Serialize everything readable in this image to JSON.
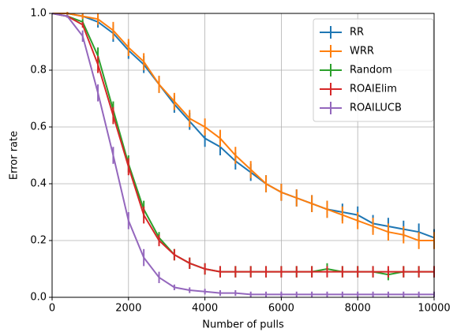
{
  "chart_data": {
    "type": "line",
    "xlabel": "Number of pulls",
    "ylabel": "Error rate",
    "x": [
      0,
      400,
      800,
      1200,
      1600,
      2000,
      2400,
      2800,
      3200,
      3600,
      4000,
      4400,
      4800,
      5200,
      5600,
      6000,
      6400,
      6800,
      7200,
      7600,
      8000,
      8400,
      8800,
      9200,
      9600,
      10000
    ],
    "series": [
      {
        "name": "RR",
        "color": "#1f77b4",
        "values": [
          1.0,
          1.0,
          0.99,
          0.97,
          0.93,
          0.87,
          0.82,
          0.75,
          0.68,
          0.62,
          0.56,
          0.53,
          0.48,
          0.44,
          0.4,
          0.37,
          0.35,
          0.33,
          0.31,
          0.3,
          0.29,
          0.26,
          0.25,
          0.24,
          0.23,
          0.21
        ],
        "errors": [
          0,
          0.005,
          0.01,
          0.02,
          0.03,
          0.03,
          0.03,
          0.03,
          0.03,
          0.03,
          0.03,
          0.03,
          0.03,
          0.03,
          0.03,
          0.03,
          0.03,
          0.03,
          0.03,
          0.03,
          0.03,
          0.03,
          0.03,
          0.03,
          0.03,
          0.03
        ]
      },
      {
        "name": "WRR",
        "color": "#ff7f0e",
        "values": [
          1.0,
          1.0,
          0.99,
          0.98,
          0.94,
          0.88,
          0.83,
          0.75,
          0.69,
          0.63,
          0.6,
          0.56,
          0.5,
          0.45,
          0.4,
          0.37,
          0.35,
          0.33,
          0.31,
          0.29,
          0.27,
          0.25,
          0.23,
          0.22,
          0.2,
          0.2
        ],
        "errors": [
          0,
          0.005,
          0.01,
          0.02,
          0.03,
          0.03,
          0.03,
          0.03,
          0.03,
          0.03,
          0.03,
          0.03,
          0.03,
          0.03,
          0.03,
          0.03,
          0.03,
          0.03,
          0.03,
          0.03,
          0.03,
          0.03,
          0.03,
          0.03,
          0.03,
          0.03
        ]
      },
      {
        "name": "Random",
        "color": "#2ca02c",
        "values": [
          1.0,
          0.99,
          0.97,
          0.85,
          0.66,
          0.47,
          0.31,
          0.21,
          0.15,
          0.12,
          0.1,
          0.09,
          0.09,
          0.09,
          0.09,
          0.09,
          0.09,
          0.09,
          0.1,
          0.09,
          0.09,
          0.09,
          0.08,
          0.09,
          0.09,
          0.09
        ],
        "errors": [
          0,
          0.005,
          0.01,
          0.03,
          0.03,
          0.03,
          0.03,
          0.02,
          0.02,
          0.02,
          0.02,
          0.02,
          0.02,
          0.02,
          0.02,
          0.02,
          0.02,
          0.02,
          0.02,
          0.02,
          0.02,
          0.02,
          0.02,
          0.02,
          0.02,
          0.02
        ]
      },
      {
        "name": "ROAIElim",
        "color": "#d62728",
        "values": [
          1.0,
          0.99,
          0.96,
          0.82,
          0.64,
          0.46,
          0.29,
          0.2,
          0.15,
          0.12,
          0.1,
          0.09,
          0.09,
          0.09,
          0.09,
          0.09,
          0.09,
          0.09,
          0.09,
          0.09,
          0.09,
          0.09,
          0.09,
          0.09,
          0.09,
          0.09
        ],
        "errors": [
          0,
          0.005,
          0.01,
          0.03,
          0.03,
          0.03,
          0.03,
          0.02,
          0.02,
          0.02,
          0.02,
          0.02,
          0.02,
          0.02,
          0.02,
          0.02,
          0.02,
          0.02,
          0.02,
          0.02,
          0.02,
          0.02,
          0.02,
          0.02,
          0.02,
          0.02
        ]
      },
      {
        "name": "ROAILUCB",
        "color": "#9467bd",
        "values": [
          1.0,
          0.99,
          0.92,
          0.72,
          0.5,
          0.27,
          0.14,
          0.07,
          0.035,
          0.025,
          0.02,
          0.015,
          0.015,
          0.01,
          0.01,
          0.01,
          0.01,
          0.01,
          0.01,
          0.01,
          0.01,
          0.01,
          0.01,
          0.01,
          0.01,
          0.01
        ],
        "errors": [
          0,
          0.005,
          0.02,
          0.03,
          0.03,
          0.03,
          0.03,
          0.02,
          0.01,
          0.01,
          0.01,
          0.01,
          0.01,
          0.01,
          0.01,
          0.01,
          0.01,
          0.01,
          0.01,
          0.01,
          0.01,
          0.01,
          0.01,
          0.01,
          0.01,
          0.01
        ]
      }
    ],
    "xlim": [
      0,
      10000
    ],
    "xticks": [
      0,
      2000,
      4000,
      6000,
      8000,
      10000
    ],
    "ylim": [
      0,
      1
    ],
    "yticks": [
      {
        "value": 0,
        "label": "0.0"
      },
      {
        "value": 0.2,
        "label": "0.2"
      },
      {
        "value": 0.4,
        "label": "0.4"
      },
      {
        "value": 0.6,
        "label": "0.6"
      },
      {
        "value": 0.8,
        "label": "0.8"
      },
      {
        "value": 1,
        "label": "1.0"
      }
    ],
    "grid": true,
    "legend": "upper right"
  }
}
